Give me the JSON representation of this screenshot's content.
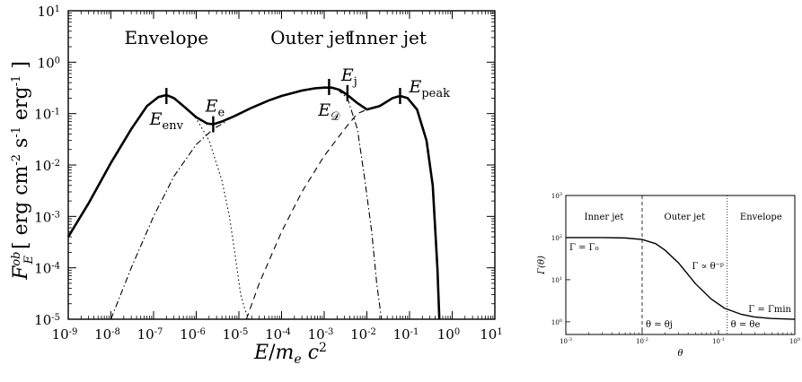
{
  "chart_data": [
    {
      "type": "line",
      "title": "",
      "xlabel": "E / m_e c^2",
      "ylabel": "F_E^ob [ erg cm^-2 s^-1 erg^-1 ]",
      "xscale": "log",
      "yscale": "log",
      "xlim": [
        1e-09,
        10
      ],
      "ylim": [
        1e-05,
        10
      ],
      "x_tick_labels": [
        {
          "base": "10",
          "exp": "-9"
        },
        {
          "base": "10",
          "exp": "-8"
        },
        {
          "base": "10",
          "exp": "-7"
        },
        {
          "base": "10",
          "exp": "-6"
        },
        {
          "base": "10",
          "exp": "-5"
        },
        {
          "base": "10",
          "exp": "-4"
        },
        {
          "base": "10",
          "exp": "-3"
        },
        {
          "base": "10",
          "exp": "-2"
        },
        {
          "base": "10",
          "exp": "-1"
        },
        {
          "base": "10",
          "exp": "0"
        },
        {
          "base": "10",
          "exp": "1"
        }
      ],
      "y_tick_labels": [
        {
          "base": "10",
          "exp": "-5"
        },
        {
          "base": "10",
          "exp": "-4"
        },
        {
          "base": "10",
          "exp": "-3"
        },
        {
          "base": "10",
          "exp": "-2"
        },
        {
          "base": "10",
          "exp": "-1"
        },
        {
          "base": "10",
          "exp": "0"
        },
        {
          "base": "10",
          "exp": "1"
        }
      ],
      "region_labels": [
        {
          "text": "Envelope",
          "x": 2e-07,
          "y": 3
        },
        {
          "text": "Outer jet",
          "x": 0.0005,
          "y": 3
        },
        {
          "text": "Inner jet",
          "x": 0.03,
          "y": 3
        }
      ],
      "annotations": [
        {
          "main": "E",
          "sub": "env",
          "x": 2e-07,
          "y": 0.22,
          "side": "below"
        },
        {
          "main": "E",
          "sub": "e",
          "x": 2.5e-06,
          "y": 0.062,
          "side": "above"
        },
        {
          "main": "E",
          "sub": "𝒟",
          "x": 0.0013,
          "y": 0.33,
          "side": "below"
        },
        {
          "main": "E",
          "sub": "j",
          "x": 0.0035,
          "y": 0.25,
          "side": "above"
        },
        {
          "main": "E",
          "sub": "peak",
          "x": 0.06,
          "y": 0.22,
          "side": "right"
        }
      ],
      "series": [
        {
          "style": "solid",
          "x": [
            1e-09,
            3e-09,
            1e-08,
            3e-08,
            7e-08,
            1.3e-07,
            2e-07,
            3e-07,
            5e-07,
            1e-06,
            1.8e-06,
            2.5e-06,
            4e-06,
            8e-06,
            2e-05,
            5e-05,
            0.0001,
            0.0003,
            0.0006,
            0.001,
            0.0015,
            0.0023,
            0.0035,
            0.006,
            0.01,
            0.02,
            0.04,
            0.06,
            0.09,
            0.15,
            0.25,
            0.35,
            0.45,
            0.5
          ],
          "y": [
            0.0004,
            0.0018,
            0.011,
            0.05,
            0.14,
            0.21,
            0.23,
            0.2,
            0.14,
            0.085,
            0.064,
            0.062,
            0.07,
            0.09,
            0.13,
            0.18,
            0.22,
            0.28,
            0.31,
            0.32,
            0.32,
            0.29,
            0.23,
            0.16,
            0.12,
            0.14,
            0.2,
            0.22,
            0.2,
            0.12,
            0.03,
            0.004,
            0.0001,
            1e-05
          ]
        },
        {
          "style": "dotted",
          "x": [
            5e-07,
            1e-06,
            2e-06,
            4e-06,
            6e-06,
            8e-06,
            1.1e-05,
            1.4e-05,
            1.7e-05
          ],
          "y": [
            0.14,
            0.08,
            0.03,
            0.005,
            0.001,
            0.0002,
            3e-05,
            1.5e-05,
            1e-05
          ]
        },
        {
          "style": "dashdot",
          "x": [
            1e-08,
            3e-08,
            1e-07,
            3e-07,
            1e-06,
            2.5e-06,
            5e-06
          ],
          "y": [
            1e-05,
            0.0001,
            0.001,
            0.006,
            0.025,
            0.05,
            0.07
          ]
        },
        {
          "style": "dashed",
          "x": [
            1.5e-05,
            3e-05,
            0.0001,
            0.0003,
            0.001,
            0.003,
            0.006,
            0.01
          ],
          "y": [
            1e-05,
            5e-05,
            0.0005,
            0.003,
            0.015,
            0.05,
            0.1,
            0.12
          ]
        },
        {
          "style": "dashdot",
          "x": [
            0.001,
            0.002,
            0.0035,
            0.006,
            0.009,
            0.013,
            0.017,
            0.022
          ],
          "y": [
            0.32,
            0.3,
            0.2,
            0.05,
            0.005,
            0.0005,
            5e-05,
            1e-05
          ]
        }
      ]
    },
    {
      "type": "line",
      "title": "",
      "xlabel": "θ",
      "ylabel": "Γ(θ)",
      "xscale": "log",
      "yscale": "log",
      "xlim": [
        0.001,
        1
      ],
      "ylim": [
        0.5,
        1000
      ],
      "x_tick_labels": [
        {
          "base": "10",
          "exp": "-3"
        },
        {
          "base": "10",
          "exp": "-2"
        },
        {
          "base": "10",
          "exp": "-1"
        },
        {
          "base": "10",
          "exp": "0"
        }
      ],
      "y_tick_labels": [
        {
          "base": "10",
          "exp": "0"
        },
        {
          "base": "10",
          "exp": "1"
        },
        {
          "base": "10",
          "exp": "2"
        },
        {
          "base": "10",
          "exp": "3"
        }
      ],
      "vertical_lines": [
        {
          "x": 0.01,
          "style": "dashed"
        },
        {
          "x": 0.13,
          "style": "dotted"
        }
      ],
      "region_labels": [
        {
          "text": "Inner jet"
        },
        {
          "text": "Outer jet"
        },
        {
          "text": "Envelope"
        }
      ],
      "annotations": [
        {
          "text": "Γ = Γ₀"
        },
        {
          "text": "Γ ∝ θ⁻ᵖ"
        },
        {
          "text": "Γ = Γmin"
        },
        {
          "text": "θ = θj"
        },
        {
          "text": "θ = θe"
        }
      ],
      "series": [
        {
          "style": "solid",
          "x": [
            0.001,
            0.003,
            0.006,
            0.01,
            0.015,
            0.02,
            0.03,
            0.05,
            0.08,
            0.12,
            0.2,
            0.3,
            0.5,
            1.0
          ],
          "y": [
            100,
            100,
            98,
            90,
            72,
            50,
            25,
            8,
            3.5,
            2.1,
            1.5,
            1.3,
            1.2,
            1.15
          ]
        }
      ]
    }
  ]
}
